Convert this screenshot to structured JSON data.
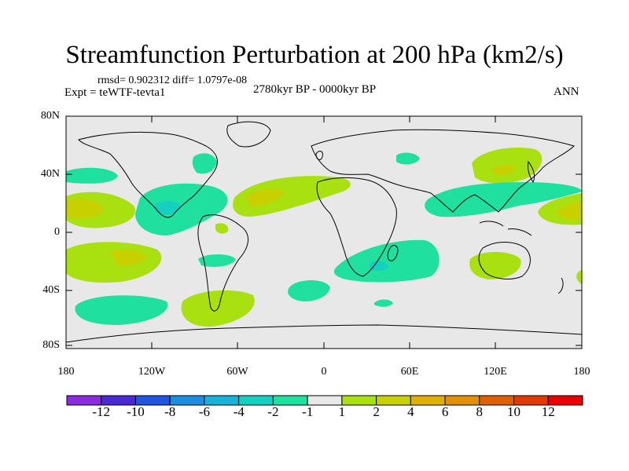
{
  "title": "Streamfunction Perturbation at 200 hPa (km2/s)",
  "stats": "rmsd= 0.902312 diff= 1.0797e-08",
  "experiment": "Expt = teWTF-tevta1",
  "period": "2780kyr BP - 0000kyr BP",
  "season": "ANN",
  "y_ticks": [
    "80N",
    "40N",
    "0",
    "40S",
    "80S"
  ],
  "x_ticks": [
    "180",
    "120W",
    "60W",
    "0",
    "60E",
    "120E",
    "180"
  ],
  "colorbar": {
    "labels": [
      "-12",
      "-10",
      "-8",
      "-6",
      "-4",
      "-2",
      "-1",
      "1",
      "2",
      "4",
      "6",
      "8",
      "10",
      "12"
    ],
    "colors": [
      "#8a2be2",
      "#4b28d6",
      "#1f55e0",
      "#1a8fe0",
      "#16b4d8",
      "#14d0c0",
      "#20e0a0",
      "#e8e8e8",
      "#a8e010",
      "#c8d000",
      "#e0b000",
      "#e09000",
      "#e06000",
      "#e03a00",
      "#e80000"
    ]
  },
  "map": {
    "ocean_color": "#e8e8e8",
    "coast_color": "#000000"
  }
}
